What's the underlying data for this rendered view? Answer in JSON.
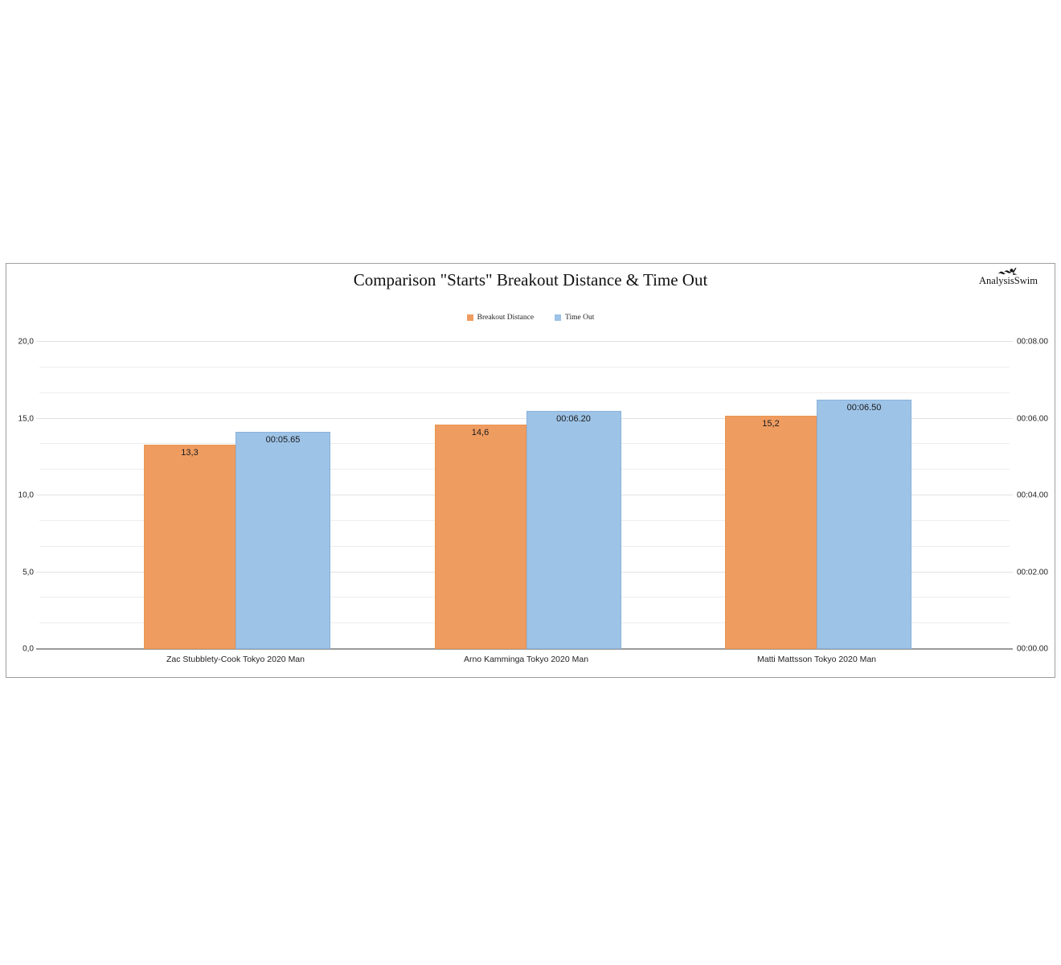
{
  "chart": {
    "title": "Comparison \"Starts\" Breakout Distance & Time Out",
    "logo_text": "AnalysisSwim"
  },
  "chart_data": {
    "type": "bar",
    "title": "Comparison \"Starts\" Breakout Distance & Time Out",
    "categories": [
      "Zac Stubblety-Cook Tokyo 2020 Man",
      "Arno Kamminga Tokyo 2020 Man",
      "Matti Mattsson Tokyo 2020 Man"
    ],
    "series": [
      {
        "name": "Breakout Distance",
        "color": "#EF9C61",
        "axis": "left",
        "values": [
          13.3,
          14.6,
          15.2
        ],
        "labels": [
          "13,3",
          "14,6",
          "15,2"
        ]
      },
      {
        "name": "Time Out",
        "color": "#9DC3E7",
        "axis": "right",
        "values": [
          5.65,
          6.2,
          6.5
        ],
        "labels": [
          "00:05.65",
          "00:06.20",
          "00:06.50"
        ]
      }
    ],
    "left_axis": {
      "min": 0,
      "max": 20,
      "ticks": [
        "0,0",
        "5,0",
        "10,0",
        "15,0",
        "20,0"
      ]
    },
    "right_axis": {
      "min": 0,
      "max": 8,
      "ticks": [
        "00:00.00",
        "00:02.00",
        "00:04.00",
        "00:06.00",
        "00:08.00"
      ]
    },
    "grid": {
      "minor_per_major": 3,
      "gridlines_on": true
    },
    "legend_position": "top-center",
    "value_labels_position": "inside-top"
  }
}
